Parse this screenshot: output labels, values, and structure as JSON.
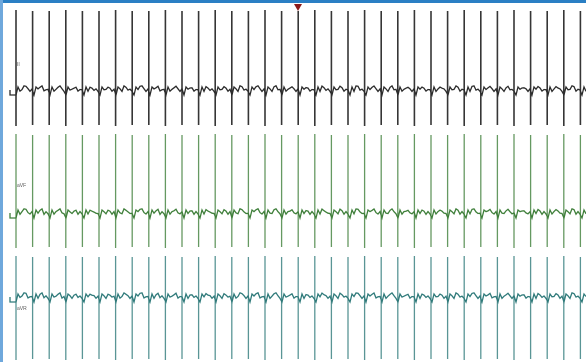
{
  "recording": {
    "channels": [
      {
        "label": "II",
        "color": "#2b2b2b",
        "spike_color": "#2b2b2b"
      },
      {
        "label": "aVF",
        "color": "#3f7f3a",
        "spike_color": "#3f7f3a"
      },
      {
        "label": "aVR",
        "color": "#2f7a7a",
        "spike_color": "#2f7a7a"
      }
    ],
    "colors": {
      "frame_top": "#2a7fc4",
      "frame_left": "#6fa8dc",
      "cursor": "#8b1a1a"
    },
    "icons": {
      "cursor": "triangle-down-marker"
    }
  }
}
